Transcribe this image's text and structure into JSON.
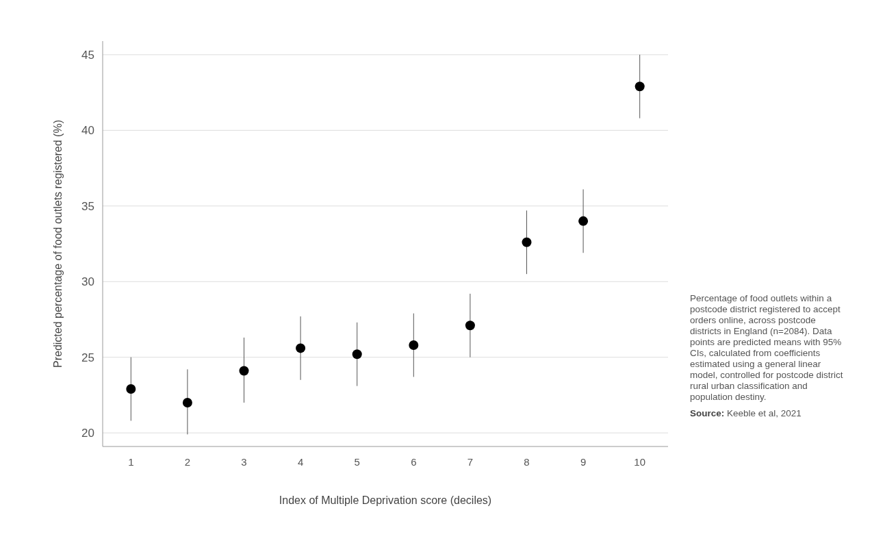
{
  "chart_data": {
    "type": "scatter",
    "xlabel": "Index of Multiple Deprivation score (deciles)",
    "ylabel": "Predicted percentage of food outlets registered (%)",
    "categories": [
      "1",
      "2",
      "3",
      "4",
      "5",
      "6",
      "7",
      "8",
      "9",
      "10"
    ],
    "series": [
      {
        "color": "#000000",
        "values": [
          22.9,
          22.0,
          24.1,
          25.6,
          25.2,
          25.8,
          27.1,
          32.6,
          34.0,
          42.9
        ],
        "errors": [
          [
            20.8,
            25.0
          ],
          [
            19.9,
            24.2
          ],
          [
            22.0,
            26.3
          ],
          [
            23.5,
            27.7
          ],
          [
            23.1,
            27.3
          ],
          [
            23.7,
            27.9
          ],
          [
            25.0,
            29.2
          ],
          [
            30.5,
            34.7
          ],
          [
            31.9,
            36.1
          ],
          [
            40.8,
            45.0
          ]
        ]
      }
    ],
    "ylim": [
      19.1,
      45.9
    ],
    "yticks": [
      20,
      25,
      30,
      35,
      40,
      45
    ],
    "grid": "y",
    "marker": "circle",
    "annotations": [
      "Percentage of food outlets within a postcode district registered to accept orders online, across postcode districts in England (n=2084). Data points are predicted means with 95% CIs, calculated from coefficients estimated using a general linear model, controlled for postcode district rural urban classification and population destiny.",
      "Source: Keeble et al, 2021"
    ]
  }
}
